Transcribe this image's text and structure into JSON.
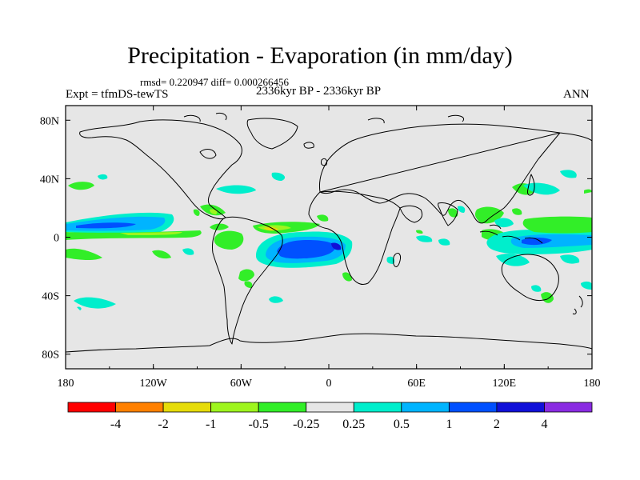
{
  "title": "Precipitation - Evaporation (in mm/day)",
  "stats": "rmsd= 0.220947 diff= 0.000266456",
  "experiment": "Expt = tfmDS-tewTS",
  "period": "2336kyr BP - 2336kyr BP",
  "season": "ANN",
  "axes": {
    "lon_ticks": [
      "180",
      "120W",
      "60W",
      "0",
      "60E",
      "120E",
      "180"
    ],
    "lat_ticks": [
      "80N",
      "40N",
      "0",
      "40S",
      "80S"
    ]
  },
  "colorbar": {
    "colors": [
      "#ff0000",
      "#ff8000",
      "#e6dc0a",
      "#9ef51e",
      "#32ee28",
      "#e6e6e6",
      "#00eecc",
      "#00b4ff",
      "#0050ff",
      "#1010d8",
      "#8a2be2"
    ],
    "labels": [
      "-4",
      "-2",
      "-1",
      "-0.5",
      "-0.25",
      "0.25",
      "0.5",
      "1",
      "2",
      "4"
    ]
  },
  "colors": {
    "background_field": "#e6e6e6",
    "coastline": "#000000"
  }
}
